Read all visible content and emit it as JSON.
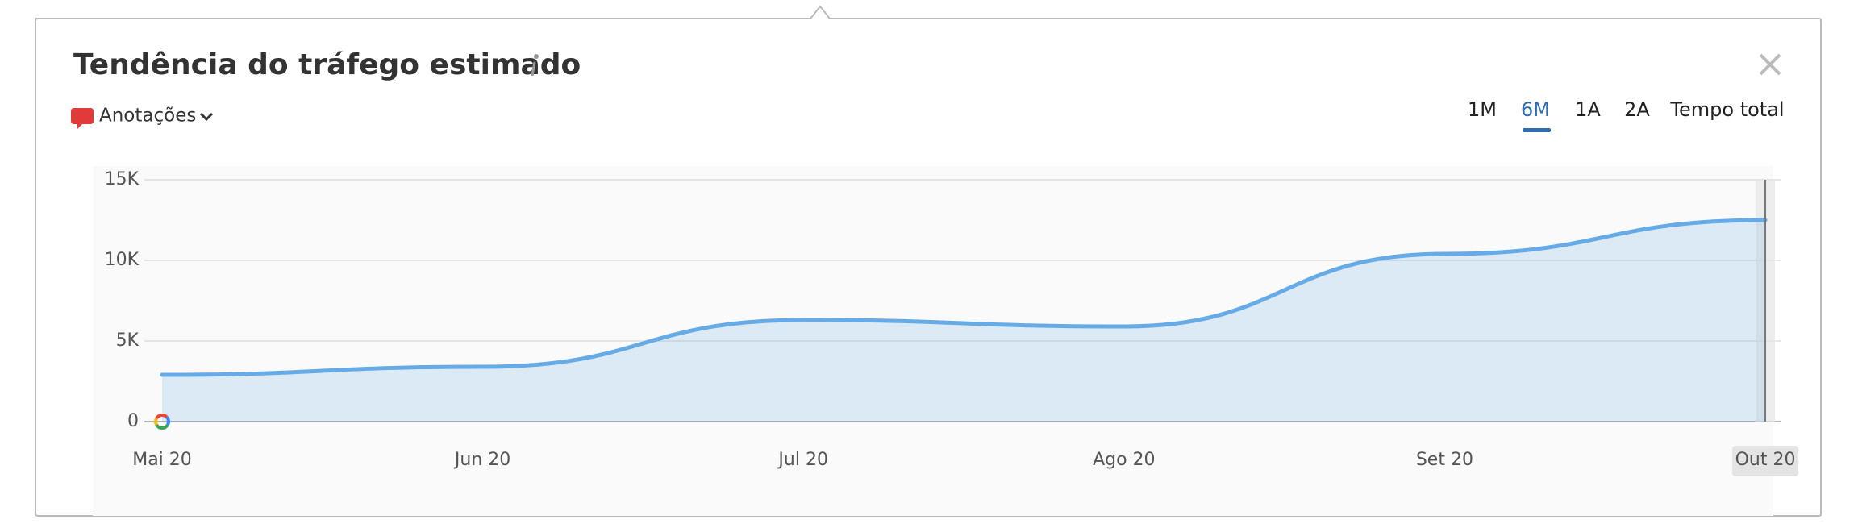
{
  "header": {
    "title": "Tendência do tráfego estimado"
  },
  "controls": {
    "annotations": "Anotações",
    "ranges": [
      "1M",
      "6M",
      "1A",
      "2A",
      "Tempo total"
    ]
  },
  "chart_data": {
    "type": "area",
    "categories": [
      "Mai 20",
      "Jun 20",
      "Jul 20",
      "Ago 20",
      "Set 20",
      "Out 20"
    ],
    "series": [
      {
        "name": "Tráfego",
        "color": "#66aae6",
        "values": [
          2900,
          3400,
          6300,
          5900,
          10400,
          12500
        ]
      }
    ],
    "ylim": [
      0,
      15000
    ],
    "yticks": [
      0,
      {
        "value": 5000,
        "label": "5K"
      },
      {
        "value": 10000,
        "label": "10K"
      },
      {
        "value": 15000,
        "label": "15K"
      }
    ],
    "grid": true
  }
}
